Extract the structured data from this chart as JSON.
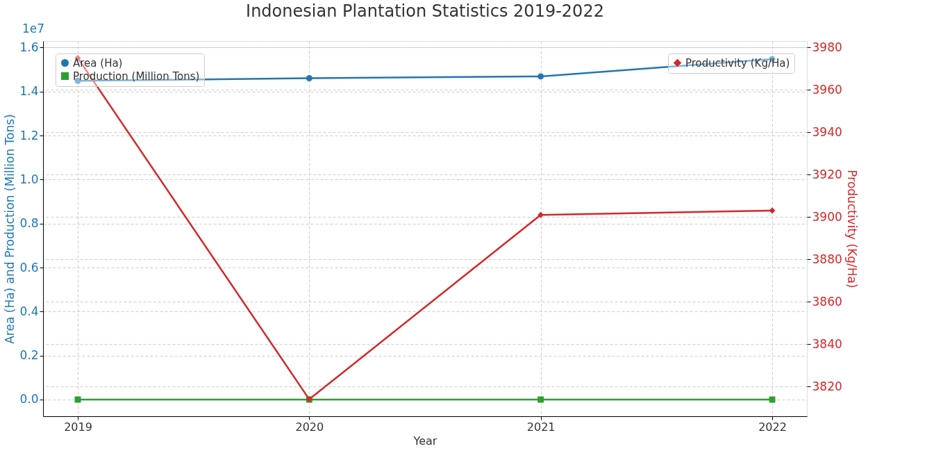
{
  "chart_data": {
    "type": "line",
    "title": "Indonesian Plantation Statistics 2019-2022",
    "xlabel": "Year",
    "ylabel": "Area (Ha) and Production (Million Tons)",
    "y2label": "Productivity (Kg/Ha)",
    "x": [
      2019,
      2020,
      2021,
      2022
    ],
    "xlim": [
      2018.85,
      2022.15
    ],
    "xticks": [
      2019,
      2020,
      2021,
      2022
    ],
    "ylim": [
      -0.076,
      1.63
    ],
    "yticks": [
      {
        "value": 0,
        "label": "0.0"
      },
      0.2,
      0.4,
      0.6,
      0.8,
      {
        "value": 1,
        "label": "1.0"
      },
      1.2,
      1.4,
      1.6
    ],
    "y2lim": [
      3806,
      3983
    ],
    "y2ticks": [
      3820,
      3840,
      3860,
      3880,
      3900,
      3920,
      3940,
      3960,
      3980
    ],
    "grid": true,
    "legend": "top left",
    "line_style": "solid",
    "annotations": [
      "1e7"
    ],
    "series": [
      {
        "name": "Area (Ha)",
        "color": "#1f77b4",
        "marker": "circle",
        "values": [
          1.449,
          1.461,
          1.469,
          1.548
        ]
      },
      {
        "name": "Production (Million Tons)",
        "color": "#2ca02c",
        "marker": "square",
        "values": [
          0,
          0,
          0,
          0
        ]
      },
      {
        "name": "Productivity (Kg/Ha)",
        "color": "#d62728",
        "marker": "diamond",
        "axis": "y2",
        "values": [
          3975,
          3814,
          3901,
          3903
        ]
      }
    ]
  }
}
